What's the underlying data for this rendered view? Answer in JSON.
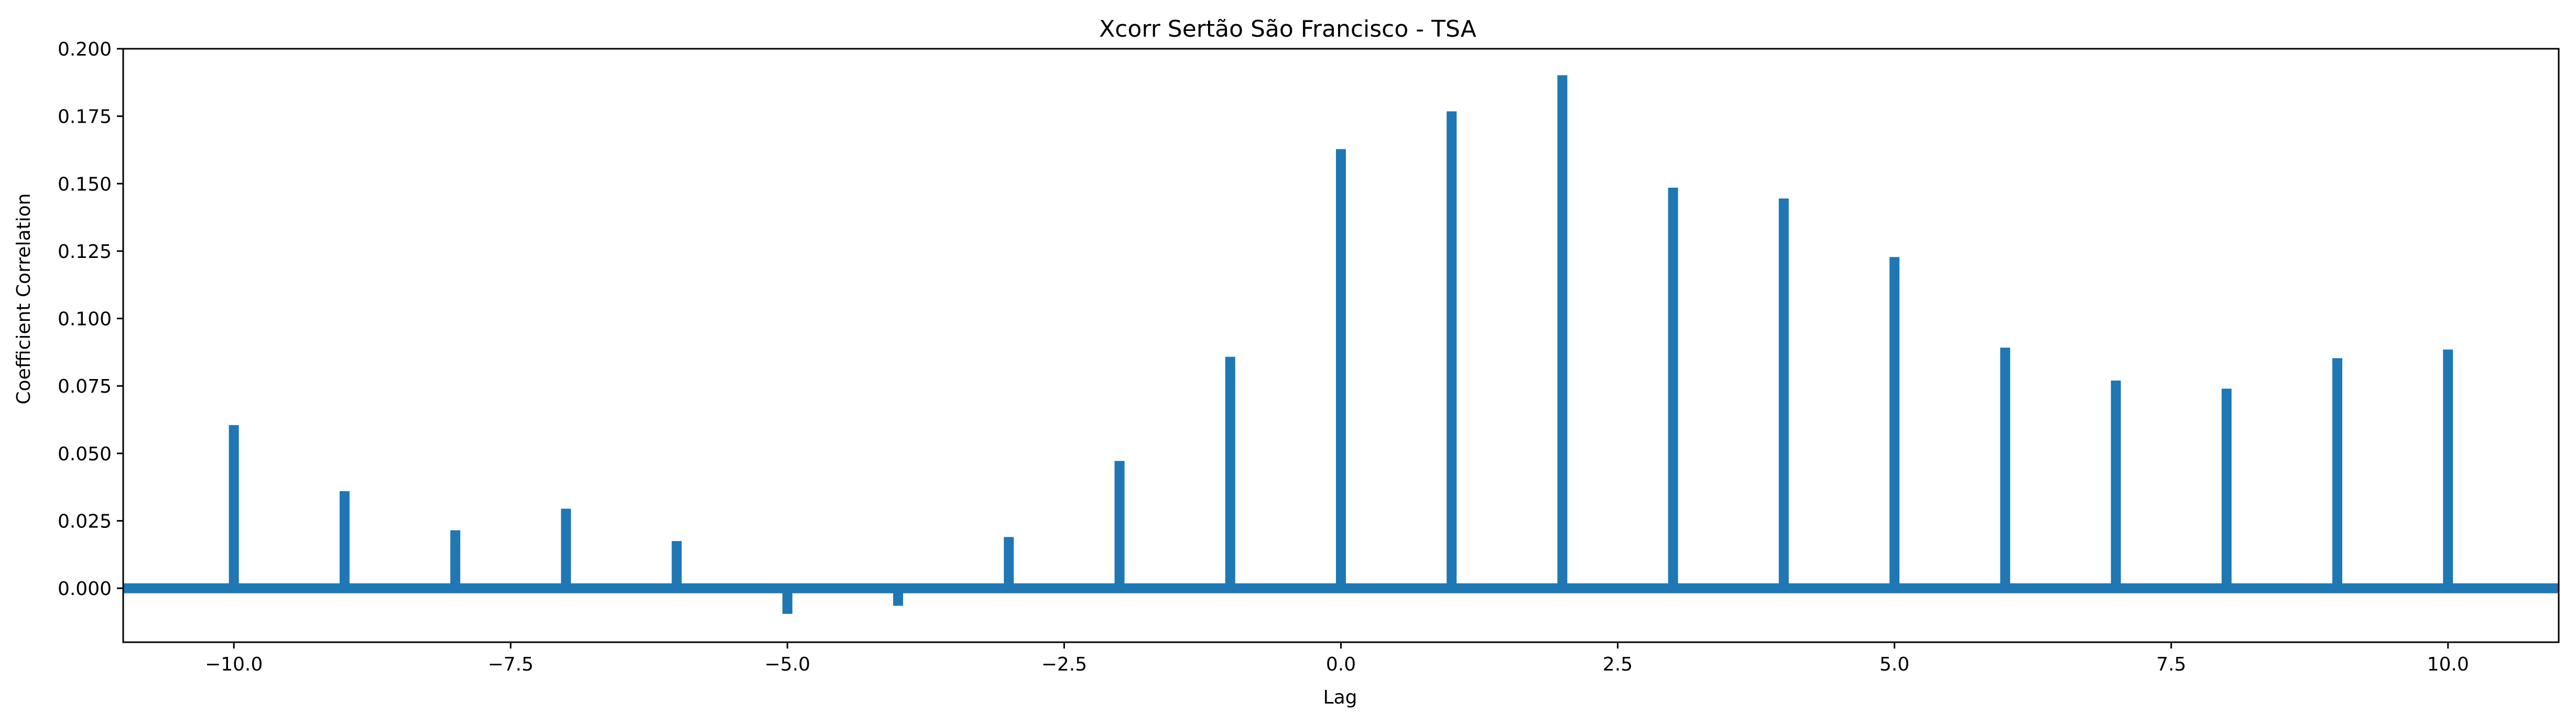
{
  "chart_data": {
    "type": "bar",
    "title": "Xcorr Sertão São Francisco - TSA",
    "xlabel": "Lag",
    "ylabel": "Coefficient Correlation",
    "xlim": [
      -11,
      11
    ],
    "ylim": [
      -0.02,
      0.2
    ],
    "xticks": [
      -10.0,
      -7.5,
      -5.0,
      -2.5,
      0.0,
      2.5,
      5.0,
      7.5,
      10.0
    ],
    "xtick_labels": [
      "−10.0",
      "−7.5",
      "−5.0",
      "−2.5",
      "0.0",
      "2.5",
      "5.0",
      "7.5",
      "10.0"
    ],
    "yticks": [
      0.0,
      0.025,
      0.05,
      0.075,
      0.1,
      0.125,
      0.15,
      0.175,
      0.2
    ],
    "ytick_labels": [
      "0.000",
      "0.025",
      "0.050",
      "0.075",
      "0.100",
      "0.125",
      "0.150",
      "0.175",
      "0.200"
    ],
    "baseline": 0,
    "color": "#1f77b4",
    "grid": false,
    "x": [
      -10,
      -9,
      -8,
      -7,
      -6,
      -5,
      -4,
      -3,
      -2,
      -1,
      0,
      1,
      2,
      3,
      4,
      5,
      6,
      7,
      8,
      9,
      10
    ],
    "values": [
      0.0605,
      0.036,
      0.0215,
      0.0295,
      0.0175,
      -0.0095,
      -0.0065,
      0.019,
      0.0472,
      0.0858,
      0.1628,
      0.1768,
      0.1902,
      0.1485,
      0.1445,
      0.1228,
      0.0892,
      0.077,
      0.074,
      0.0853,
      0.0885
    ]
  }
}
